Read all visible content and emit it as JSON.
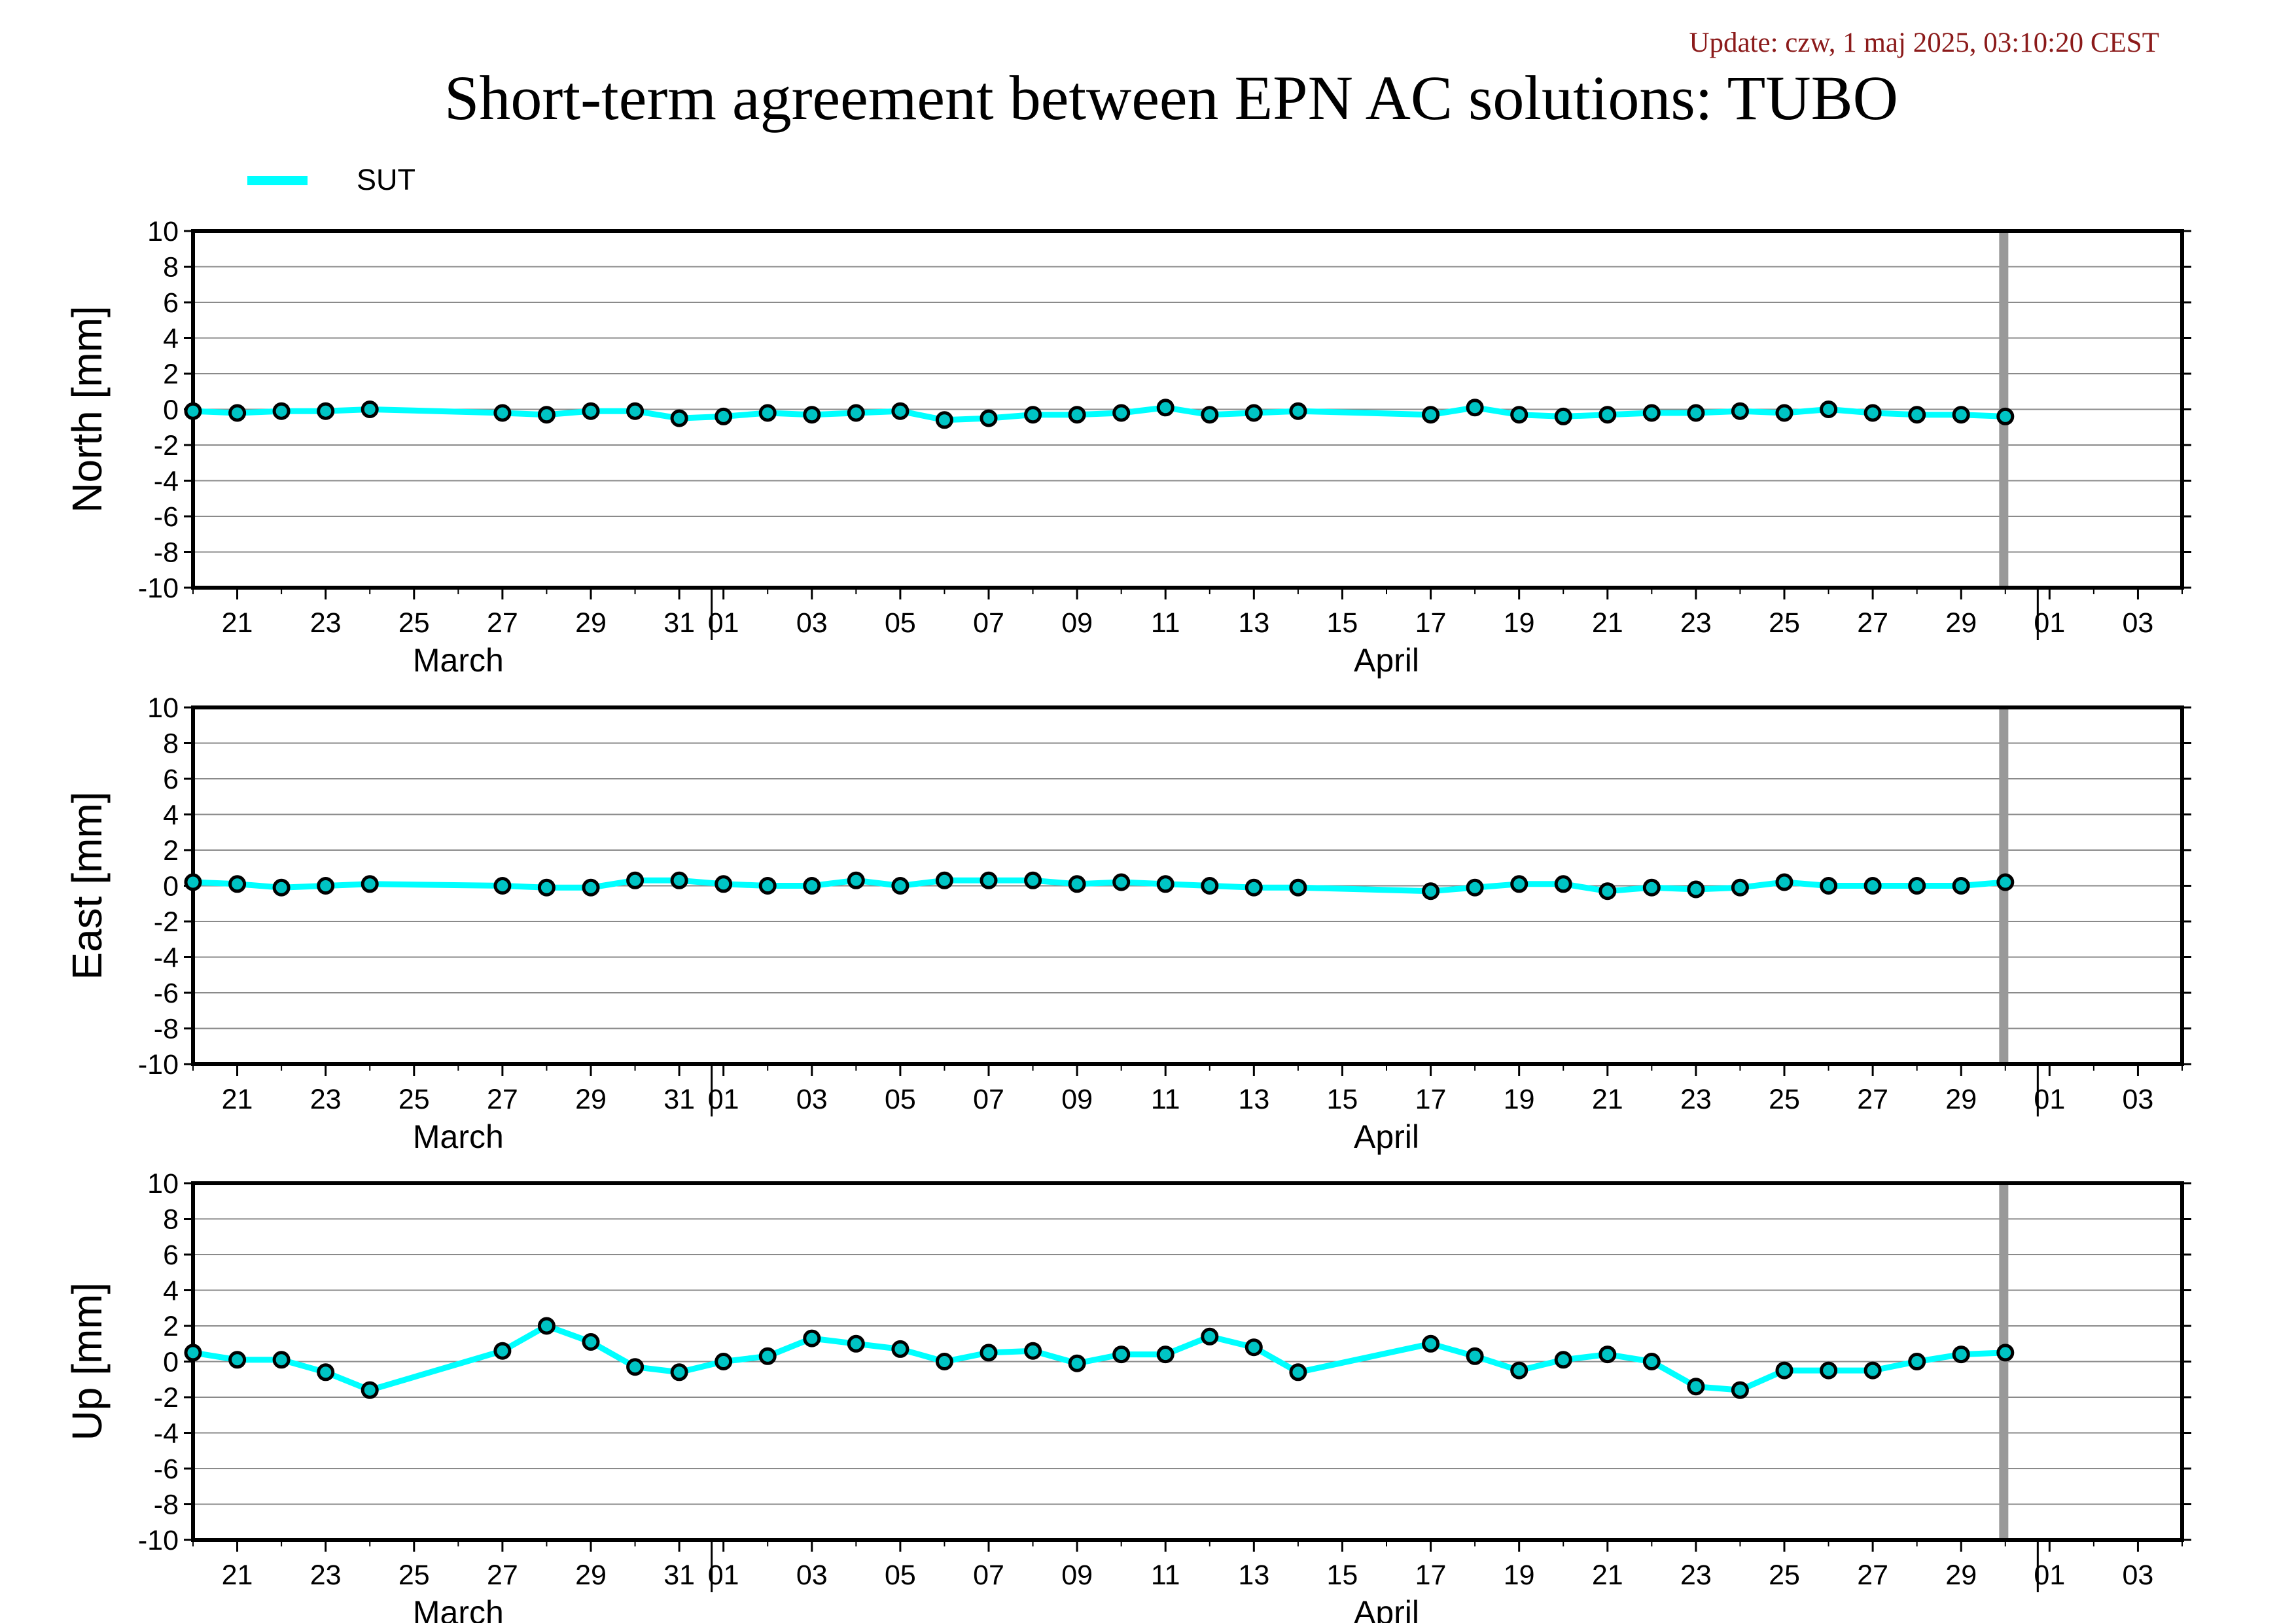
{
  "header": {
    "update": "Update: czw, 1 maj 2025, 03:10:20 CEST",
    "title": "Short-term agreement between EPN AC solutions: TUBO"
  },
  "legend": {
    "label": "SUT",
    "color": "#00ffff"
  },
  "colors": {
    "series": "#00ffff",
    "marker_fill": "#00c4c4",
    "update_text": "#8b1a1a",
    "gap_bar": "#999999",
    "grid": "#8a8a8a"
  },
  "chart_data": [
    {
      "type": "line",
      "ylabel": "North [mm]",
      "ylim": [
        -10,
        10
      ],
      "yticks": [
        10,
        8,
        6,
        4,
        2,
        0,
        -2,
        -4,
        -6,
        -8,
        -10
      ],
      "xlim": [
        "2025-03-20",
        "2025-05-04"
      ],
      "grid": true,
      "series": [
        {
          "name": "SUT",
          "x": [
            "2025-03-20",
            "2025-03-21",
            "2025-03-22",
            "2025-03-23",
            "2025-03-24",
            "2025-03-27",
            "2025-03-28",
            "2025-03-29",
            "2025-03-30",
            "2025-03-31",
            "2025-04-01",
            "2025-04-02",
            "2025-04-03",
            "2025-04-04",
            "2025-04-05",
            "2025-04-06",
            "2025-04-07",
            "2025-04-08",
            "2025-04-09",
            "2025-04-10",
            "2025-04-11",
            "2025-04-12",
            "2025-04-13",
            "2025-04-14",
            "2025-04-17",
            "2025-04-18",
            "2025-04-19",
            "2025-04-20",
            "2025-04-21",
            "2025-04-22",
            "2025-04-23",
            "2025-04-24",
            "2025-04-25",
            "2025-04-26",
            "2025-04-27",
            "2025-04-28",
            "2025-04-29",
            "2025-04-30"
          ],
          "values": [
            -0.1,
            -0.2,
            -0.1,
            -0.1,
            0.0,
            -0.2,
            -0.3,
            -0.1,
            -0.1,
            -0.5,
            -0.4,
            -0.2,
            -0.3,
            -0.2,
            -0.1,
            -0.6,
            -0.5,
            -0.3,
            -0.3,
            -0.2,
            0.1,
            -0.3,
            -0.2,
            -0.1,
            -0.3,
            0.1,
            -0.3,
            -0.4,
            -0.3,
            -0.2,
            -0.2,
            -0.1,
            -0.2,
            0.0,
            -0.2,
            -0.3,
            -0.3,
            -0.4
          ]
        }
      ]
    },
    {
      "type": "line",
      "ylabel": "East [mm]",
      "ylim": [
        -10,
        10
      ],
      "yticks": [
        10,
        8,
        6,
        4,
        2,
        0,
        -2,
        -4,
        -6,
        -8,
        -10
      ],
      "xlim": [
        "2025-03-20",
        "2025-05-04"
      ],
      "grid": true,
      "series": [
        {
          "name": "SUT",
          "x": [
            "2025-03-20",
            "2025-03-21",
            "2025-03-22",
            "2025-03-23",
            "2025-03-24",
            "2025-03-27",
            "2025-03-28",
            "2025-03-29",
            "2025-03-30",
            "2025-03-31",
            "2025-04-01",
            "2025-04-02",
            "2025-04-03",
            "2025-04-04",
            "2025-04-05",
            "2025-04-06",
            "2025-04-07",
            "2025-04-08",
            "2025-04-09",
            "2025-04-10",
            "2025-04-11",
            "2025-04-12",
            "2025-04-13",
            "2025-04-14",
            "2025-04-17",
            "2025-04-18",
            "2025-04-19",
            "2025-04-20",
            "2025-04-21",
            "2025-04-22",
            "2025-04-23",
            "2025-04-24",
            "2025-04-25",
            "2025-04-26",
            "2025-04-27",
            "2025-04-28",
            "2025-04-29",
            "2025-04-30"
          ],
          "values": [
            0.2,
            0.1,
            -0.1,
            0.0,
            0.1,
            0.0,
            -0.1,
            -0.1,
            0.3,
            0.3,
            0.1,
            0.0,
            0.0,
            0.3,
            0.0,
            0.3,
            0.3,
            0.3,
            0.1,
            0.2,
            0.1,
            0.0,
            -0.1,
            -0.1,
            -0.3,
            -0.1,
            0.1,
            0.1,
            -0.3,
            -0.1,
            -0.2,
            -0.1,
            0.2,
            0.0,
            0.0,
            0.0,
            0.0,
            0.2
          ]
        }
      ]
    },
    {
      "type": "line",
      "ylabel": "Up [mm]",
      "ylim": [
        -10,
        10
      ],
      "yticks": [
        10,
        8,
        6,
        4,
        2,
        0,
        -2,
        -4,
        -6,
        -8,
        -10
      ],
      "xlim": [
        "2025-03-20",
        "2025-05-04"
      ],
      "grid": true,
      "series": [
        {
          "name": "SUT",
          "x": [
            "2025-03-20",
            "2025-03-21",
            "2025-03-22",
            "2025-03-23",
            "2025-03-24",
            "2025-03-27",
            "2025-03-28",
            "2025-03-29",
            "2025-03-30",
            "2025-03-31",
            "2025-04-01",
            "2025-04-02",
            "2025-04-03",
            "2025-04-04",
            "2025-04-05",
            "2025-04-06",
            "2025-04-07",
            "2025-04-08",
            "2025-04-09",
            "2025-04-10",
            "2025-04-11",
            "2025-04-12",
            "2025-04-13",
            "2025-04-14",
            "2025-04-17",
            "2025-04-18",
            "2025-04-19",
            "2025-04-20",
            "2025-04-21",
            "2025-04-22",
            "2025-04-23",
            "2025-04-24",
            "2025-04-25",
            "2025-04-26",
            "2025-04-27",
            "2025-04-28",
            "2025-04-29",
            "2025-04-30"
          ],
          "values": [
            0.5,
            0.1,
            0.1,
            -0.6,
            -1.6,
            0.6,
            2.0,
            1.1,
            -0.3,
            -0.6,
            0.0,
            0.3,
            1.3,
            1.0,
            0.7,
            0.0,
            0.5,
            0.6,
            -0.1,
            0.4,
            0.4,
            1.4,
            0.8,
            -0.6,
            1.0,
            0.3,
            -0.5,
            0.1,
            0.4,
            0.0,
            -1.4,
            -1.6,
            -0.5,
            -0.5,
            -0.5,
            0.0,
            0.4,
            0.5
          ]
        }
      ]
    }
  ],
  "x_axis": {
    "tick_labels": [
      {
        "date": "2025-03-21",
        "label": "21"
      },
      {
        "date": "2025-03-23",
        "label": "23"
      },
      {
        "date": "2025-03-25",
        "label": "25"
      },
      {
        "date": "2025-03-27",
        "label": "27"
      },
      {
        "date": "2025-03-29",
        "label": "29"
      },
      {
        "date": "2025-03-31",
        "label": "31"
      },
      {
        "date": "2025-04-01",
        "label": "01"
      },
      {
        "date": "2025-04-03",
        "label": "03"
      },
      {
        "date": "2025-04-05",
        "label": "05"
      },
      {
        "date": "2025-04-07",
        "label": "07"
      },
      {
        "date": "2025-04-09",
        "label": "09"
      },
      {
        "date": "2025-04-11",
        "label": "11"
      },
      {
        "date": "2025-04-13",
        "label": "13"
      },
      {
        "date": "2025-04-15",
        "label": "15"
      },
      {
        "date": "2025-04-17",
        "label": "17"
      },
      {
        "date": "2025-04-19",
        "label": "19"
      },
      {
        "date": "2025-04-21",
        "label": "21"
      },
      {
        "date": "2025-04-23",
        "label": "23"
      },
      {
        "date": "2025-04-25",
        "label": "25"
      },
      {
        "date": "2025-04-27",
        "label": "27"
      },
      {
        "date": "2025-04-29",
        "label": "29"
      },
      {
        "date": "2025-05-01",
        "label": "01"
      },
      {
        "date": "2025-05-03",
        "label": "03"
      }
    ],
    "month_boundaries": [
      "2025-04-01",
      "2025-05-01"
    ],
    "month_labels": [
      {
        "date": "2025-03-26",
        "label": "March"
      },
      {
        "date": "2025-04-16",
        "label": "April"
      }
    ],
    "gap_marker_date": "2025-05-01"
  }
}
